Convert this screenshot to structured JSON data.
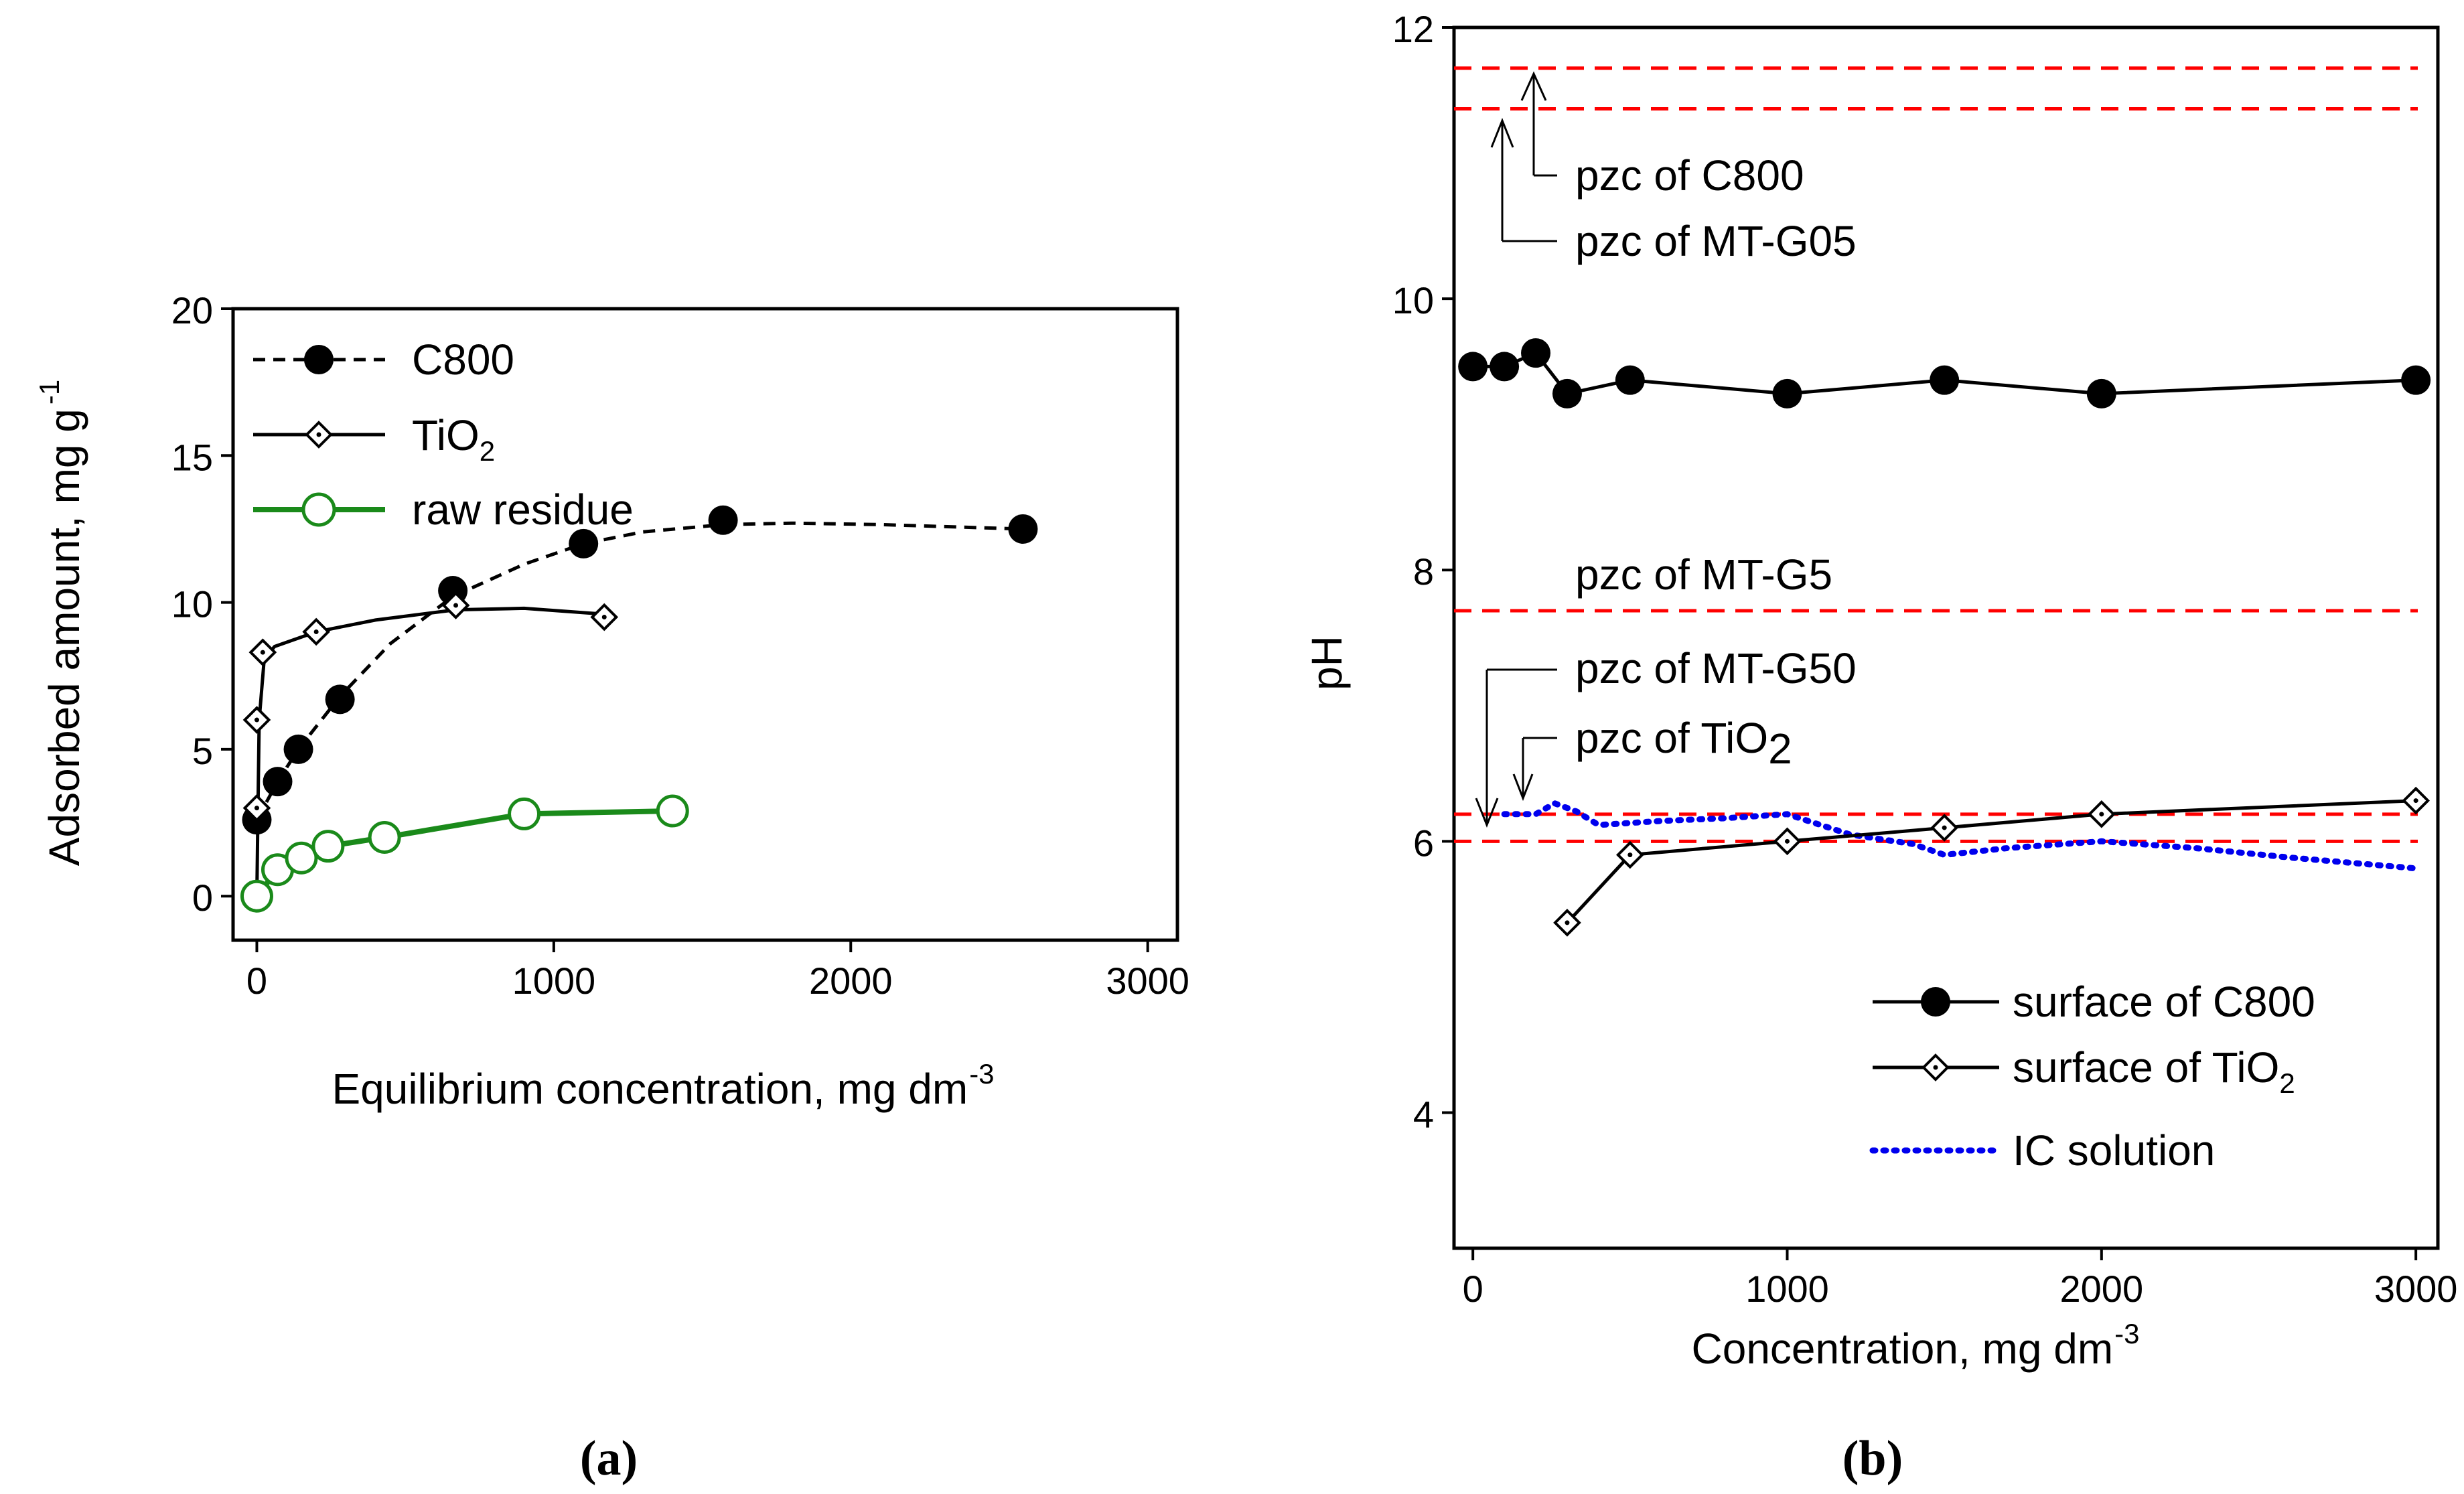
{
  "chart_data": [
    {
      "panel": "a",
      "type": "line",
      "xlabel": "Equilibrium concentration, mg dm",
      "xlabel_sup": "-3",
      "ylabel": "Adsorbed amount, mg g",
      "ylabel_sup": "-1",
      "xlim": [
        -80,
        3100
      ],
      "ylim": [
        -1.5,
        20
      ],
      "xticks": [
        0,
        1000,
        2000,
        3000
      ],
      "xtick_labels": [
        "0",
        "1000",
        "2000",
        "3000"
      ],
      "yticks": [
        0,
        5,
        10,
        15,
        20
      ],
      "ytick_labels": [
        "0",
        "5",
        "10",
        "15",
        "20"
      ],
      "legend_position": "top-left",
      "series": [
        {
          "name": "C800",
          "legend_label": "C800",
          "marker": "filled-circle",
          "line": "dashed",
          "color": "#000000",
          "points": [
            [
              0,
              2.6
            ],
            [
              70,
              3.9
            ],
            [
              140,
              5.0
            ],
            [
              280,
              6.7
            ],
            [
              660,
              10.4
            ],
            [
              1100,
              12.0
            ],
            [
              1570,
              12.8
            ],
            [
              2580,
              12.5
            ]
          ],
          "fit": [
            [
              0,
              2.6
            ],
            [
              70,
              3.9
            ],
            [
              140,
              5.0
            ],
            [
              280,
              6.8
            ],
            [
              450,
              8.6
            ],
            [
              660,
              10.2
            ],
            [
              900,
              11.3
            ],
            [
              1100,
              12.0
            ],
            [
              1300,
              12.4
            ],
            [
              1570,
              12.65
            ],
            [
              1800,
              12.7
            ],
            [
              2100,
              12.65
            ],
            [
              2580,
              12.5
            ]
          ]
        },
        {
          "name": "TiO2",
          "legend_label": "TiO",
          "legend_sub": "2",
          "marker": "open-diamond-dot",
          "line": "solid",
          "color": "#000000",
          "points": [
            [
              0,
              3.0
            ],
            [
              0,
              6.0
            ],
            [
              20,
              8.3
            ],
            [
              200,
              9.0
            ],
            [
              670,
              9.9
            ],
            [
              1170,
              9.5
            ]
          ],
          "fit": [
            [
              0,
              0
            ],
            [
              4,
              3.0
            ],
            [
              8,
              6.0
            ],
            [
              25,
              8.1
            ],
            [
              60,
              8.5
            ],
            [
              200,
              9.0
            ],
            [
              400,
              9.4
            ],
            [
              670,
              9.75
            ],
            [
              900,
              9.8
            ],
            [
              1170,
              9.6
            ]
          ]
        },
        {
          "name": "raw residue",
          "legend_label": "raw residue",
          "marker": "open-circle",
          "line": "solid",
          "color": "#1a8a1a",
          "points": [
            [
              0,
              0
            ],
            [
              70,
              0.9
            ],
            [
              150,
              1.3
            ],
            [
              240,
              1.7
            ],
            [
              430,
              2.0
            ],
            [
              900,
              2.8
            ],
            [
              1400,
              2.9
            ]
          ]
        }
      ]
    },
    {
      "panel": "b",
      "type": "line",
      "xlabel": "Concentration, mg dm",
      "xlabel_sup": "-3",
      "ylabel": "pH",
      "xlim": [
        -60,
        3070
      ],
      "ylim": [
        3,
        12
      ],
      "xticks": [
        0,
        1000,
        2000,
        3000
      ],
      "xtick_labels": [
        "0",
        "1000",
        "2000",
        "3000"
      ],
      "yticks": [
        4,
        6,
        8,
        10,
        12
      ],
      "ytick_labels": [
        "4",
        "6",
        "8",
        "10",
        "12"
      ],
      "legend_position": "bottom-right",
      "reference_lines": [
        {
          "name": "pzc of C800",
          "y": 11.7,
          "color": "#ff0000"
        },
        {
          "name": "pzc of MT-G05",
          "y": 11.4,
          "color": "#ff0000"
        },
        {
          "name": "pzc of MT-G5",
          "y": 7.7,
          "color": "#ff0000"
        },
        {
          "name": "pzc of TiO2",
          "y": 6.2,
          "color": "#ff0000"
        },
        {
          "name": "pzc of MT-G50",
          "y": 6.0,
          "color": "#ff0000"
        }
      ],
      "annotations": {
        "c800": "pzc of C800",
        "mtg05": "pzc of MT-G05",
        "mtg5": "pzc of MT-G5",
        "mtg50": "pzc of MT-G50",
        "tio2": "pzc of TiO",
        "tio2_sub": "2"
      },
      "series": [
        {
          "name": "surface of C800",
          "legend_label": "surface of C800",
          "marker": "filled-circle",
          "line": "solid",
          "color": "#000000",
          "points": [
            [
              0,
              9.5
            ],
            [
              100,
              9.5
            ],
            [
              200,
              9.6
            ],
            [
              300,
              9.3
            ],
            [
              500,
              9.4
            ],
            [
              1000,
              9.3
            ],
            [
              1500,
              9.4
            ],
            [
              2000,
              9.3
            ],
            [
              3000,
              9.4
            ]
          ]
        },
        {
          "name": "surface of TiO2",
          "legend_label": "surface of TiO",
          "legend_sub": "2",
          "marker": "open-diamond-dot",
          "line": "solid",
          "color": "#000000",
          "points": [
            [
              300,
              5.4
            ],
            [
              500,
              5.9
            ],
            [
              1000,
              6.0
            ],
            [
              1500,
              6.1
            ],
            [
              2000,
              6.2
            ],
            [
              3000,
              6.3
            ]
          ]
        },
        {
          "name": "IC solution",
          "legend_label": "IC solution",
          "marker": "none",
          "line": "dotted",
          "color": "#0000ee",
          "points": [
            [
              100,
              6.2
            ],
            [
              200,
              6.2
            ],
            [
              260,
              6.28
            ],
            [
              330,
              6.22
            ],
            [
              400,
              6.12
            ],
            [
              600,
              6.15
            ],
            [
              800,
              6.17
            ],
            [
              1000,
              6.2
            ],
            [
              1200,
              6.05
            ],
            [
              1400,
              5.98
            ],
            [
              1500,
              5.9
            ],
            [
              1700,
              5.95
            ],
            [
              2000,
              6.0
            ],
            [
              2300,
              5.95
            ],
            [
              2600,
              5.88
            ],
            [
              3000,
              5.8
            ]
          ]
        }
      ]
    }
  ],
  "labels": {
    "panel_a": "(a)",
    "panel_b": "(b)"
  }
}
